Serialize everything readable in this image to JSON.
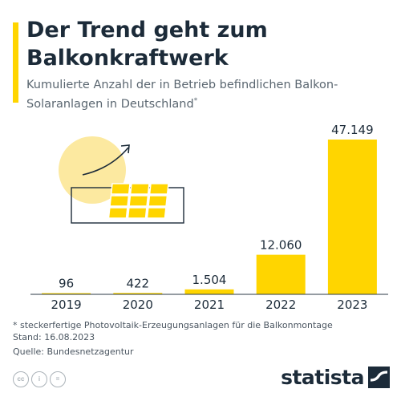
{
  "title": "Der Trend geht zum Balkonkraftwerk",
  "subtitle": "Kumulierte Anzahl der in Betrieb befindlichen Balkon-Solaranlagen in Deutschland",
  "subtitle_mark": "*",
  "footnote": "* steckerfertige Photovoltaik-Erzeugungsanlagen für die Balkonmontage",
  "date_note": "Stand: 16.08.2023",
  "source": "Quelle: Bundesnetzagentur",
  "brand": "statista",
  "license_icons": [
    "cc-icon",
    "by-icon",
    "nd-icon"
  ],
  "colors": {
    "accent": "#ffd500",
    "bar": "#ffd500",
    "title": "#1c2b39",
    "text": "#5a6670"
  },
  "chart_data": {
    "type": "bar",
    "categories": [
      "2019",
      "2020",
      "2021",
      "2022",
      "2023"
    ],
    "values": [
      96,
      422,
      1504,
      12060,
      47149
    ],
    "value_labels": [
      "96",
      "422",
      "1.504",
      "12.060",
      "47.149"
    ],
    "title": "Der Trend geht zum Balkonkraftwerk",
    "xlabel": "",
    "ylabel": "",
    "ylim": [
      0,
      47149
    ],
    "grid": false,
    "legend": "none"
  }
}
